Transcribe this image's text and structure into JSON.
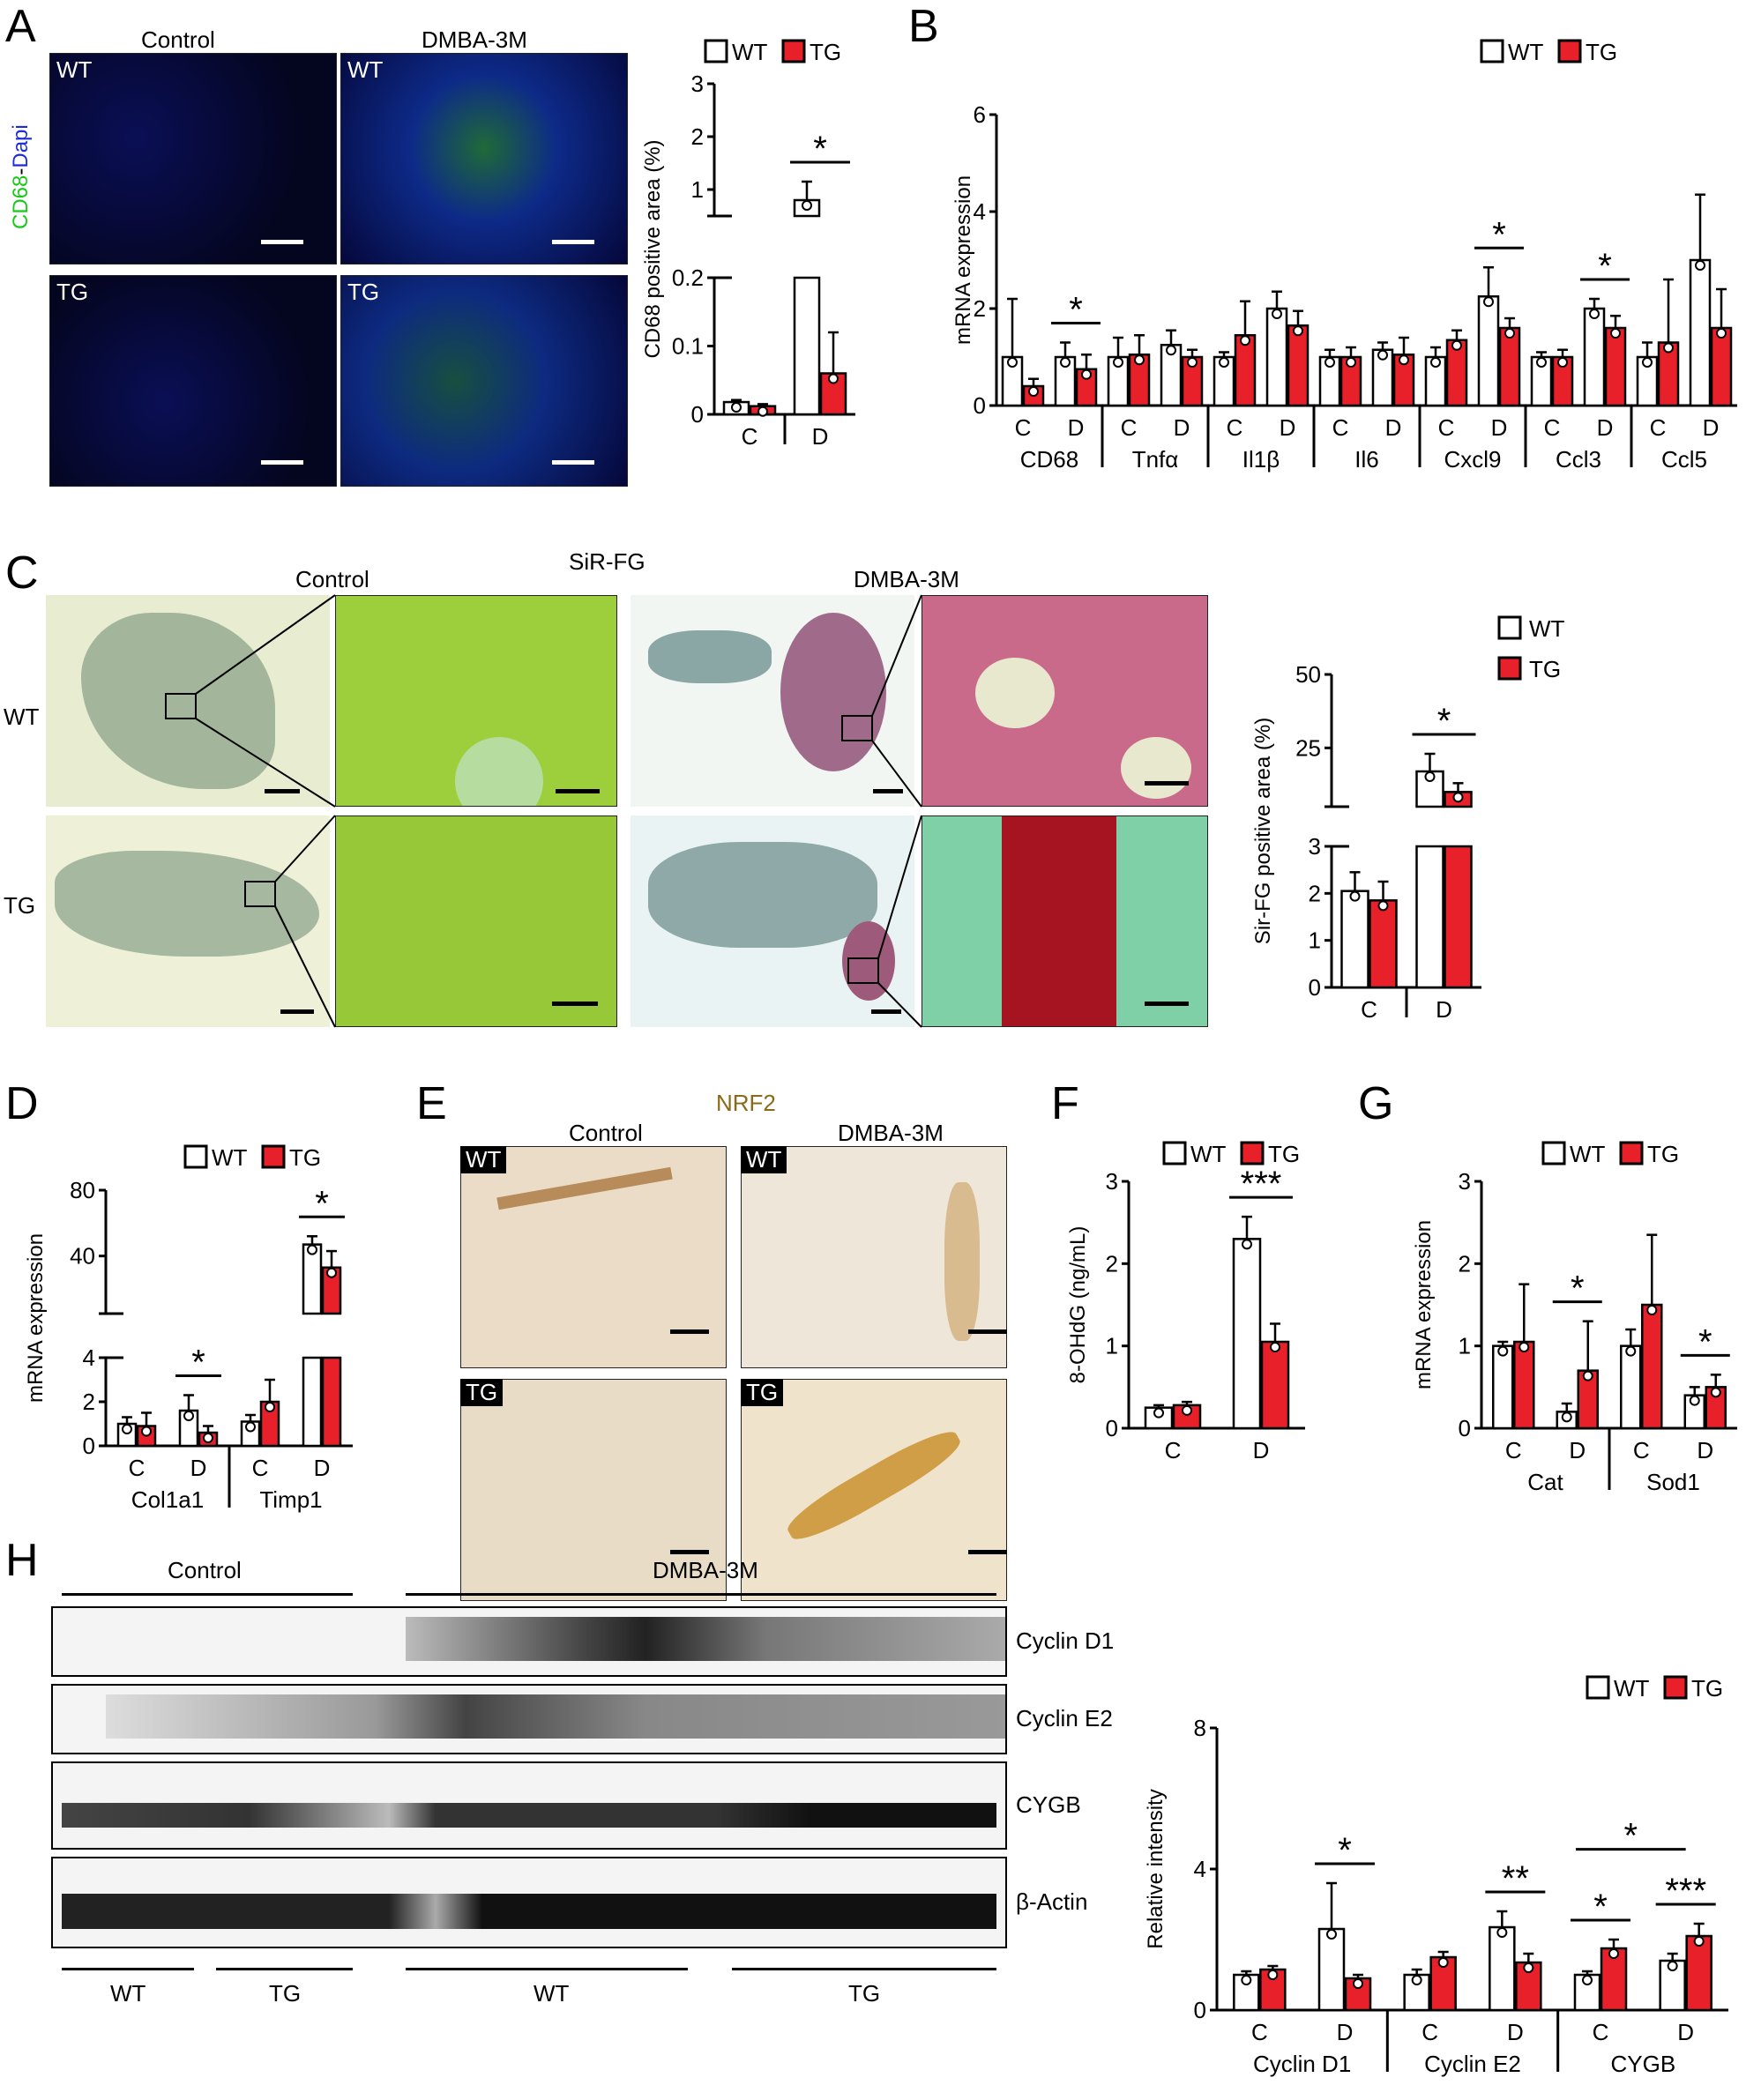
{
  "panels": {
    "A": {
      "letter": "A",
      "col_control": "Control",
      "col_dmba": "DMBA-3M",
      "row_wt": "WT",
      "row_tg": "TG",
      "stain_cd68": "CD68",
      "stain_sep": "-",
      "stain_dapi": "Dapi",
      "colors": {
        "cd68": "#17c917",
        "dapi": "#1b2bd8",
        "bg": "#03031a"
      }
    },
    "B": {
      "letter": "B"
    },
    "C": {
      "letter": "C",
      "title": "SiR-FG",
      "col_control": "Control",
      "col_dmba": "DMBA-3M",
      "row_wt": "WT",
      "row_tg": "TG"
    },
    "D": {
      "letter": "D"
    },
    "E": {
      "letter": "E",
      "title": "NRF2",
      "col_control": "Control",
      "col_dmba": "DMBA-3M",
      "row_wt": "WT",
      "row_tg": "TG",
      "title_color": "#8a6a1a"
    },
    "F": {
      "letter": "F"
    },
    "G": {
      "letter": "G"
    },
    "H": {
      "letter": "H",
      "group_control": "Control",
      "group_dmba": "DMBA-3M",
      "blot_labels": [
        "Cyclin D1",
        "Cyclin E2",
        "CYGB",
        "β-Actin"
      ],
      "bottom_labels": [
        "WT",
        "TG",
        "WT",
        "TG"
      ]
    }
  },
  "legend": {
    "wt": "WT",
    "tg": "TG",
    "wt_color": "#ffffff",
    "tg_color": "#e8202a"
  },
  "chart_data": [
    {
      "id": "A-chart",
      "type": "bar",
      "ylabel": "CD68 positive area (%)",
      "axis_break": true,
      "yticks_lower": [
        0.0,
        0.1,
        0.2
      ],
      "yticks_upper": [
        1,
        2,
        3
      ],
      "categories": [
        "C",
        "D"
      ],
      "series": [
        {
          "name": "WT",
          "values": [
            0.018,
            0.8
          ],
          "errors": [
            0.003,
            0.35
          ]
        },
        {
          "name": "TG",
          "values": [
            0.012,
            0.06
          ],
          "errors": [
            0.003,
            0.06
          ]
        }
      ],
      "significance": [
        {
          "category": "D",
          "label": "*"
        }
      ]
    },
    {
      "id": "B-chart",
      "type": "bar",
      "ylabel": "mRNA expression",
      "ylim": [
        0,
        6
      ],
      "yticks": [
        0,
        2,
        4,
        6
      ],
      "genes": [
        "CD68",
        "Tnfα",
        "Il1β",
        "Il6",
        "Cxcl9",
        "Ccl3",
        "Ccl5"
      ],
      "subcategories": [
        "C",
        "D"
      ],
      "series": [
        {
          "name": "WT",
          "values": [
            [
              1.0,
              1.0
            ],
            [
              1.0,
              1.25
            ],
            [
              1.0,
              2.0
            ],
            [
              1.0,
              1.15
            ],
            [
              1.0,
              2.25
            ],
            [
              1.0,
              2.0
            ],
            [
              1.0,
              3.0
            ]
          ],
          "errors": [
            [
              1.2,
              0.3
            ],
            [
              0.4,
              0.3
            ],
            [
              0.1,
              0.35
            ],
            [
              0.15,
              0.15
            ],
            [
              0.2,
              0.6
            ],
            [
              0.1,
              0.2
            ],
            [
              0.3,
              1.35
            ]
          ]
        },
        {
          "name": "TG",
          "values": [
            [
              0.4,
              0.75
            ],
            [
              1.05,
              1.0
            ],
            [
              1.45,
              1.65
            ],
            [
              1.0,
              1.05
            ],
            [
              1.35,
              1.6
            ],
            [
              1.0,
              1.6
            ],
            [
              1.3,
              1.6
            ]
          ],
          "errors": [
            [
              0.15,
              0.3
            ],
            [
              0.4,
              0.15
            ],
            [
              0.7,
              0.3
            ],
            [
              0.2,
              0.35
            ],
            [
              0.2,
              0.2
            ],
            [
              0.15,
              0.25
            ],
            [
              1.3,
              0.8
            ]
          ]
        }
      ],
      "significance": [
        {
          "gene": "CD68",
          "sub": "D",
          "label": "*"
        },
        {
          "gene": "Cxcl9",
          "sub": "D",
          "label": "*"
        },
        {
          "gene": "Ccl3",
          "sub": "D",
          "label": "*"
        }
      ]
    },
    {
      "id": "C-chart",
      "type": "bar",
      "ylabel": "Sir-FG positive area (%)",
      "axis_break": true,
      "yticks_lower": [
        0,
        1,
        2,
        3
      ],
      "yticks_upper": [
        25,
        50
      ],
      "categories": [
        "C",
        "D"
      ],
      "series": [
        {
          "name": "WT",
          "values": [
            2.05,
            17
          ],
          "errors": [
            0.4,
            6
          ]
        },
        {
          "name": "TG",
          "values": [
            1.85,
            10
          ],
          "errors": [
            0.4,
            3
          ]
        }
      ],
      "significance": [
        {
          "category": "D",
          "label": "*"
        }
      ]
    },
    {
      "id": "D-chart",
      "type": "bar",
      "ylabel": "mRNA expression",
      "axis_break": true,
      "yticks_lower": [
        0,
        2,
        4
      ],
      "yticks_upper": [
        40,
        80
      ],
      "genes": [
        "Col1a1",
        "Timp1"
      ],
      "subcategories": [
        "C",
        "D"
      ],
      "series": [
        {
          "name": "WT",
          "values": [
            [
              1.0,
              1.6
            ],
            [
              1.1,
              47
            ]
          ],
          "errors": [
            [
              0.3,
              0.7
            ],
            [
              0.3,
              5
            ]
          ]
        },
        {
          "name": "TG",
          "values": [
            [
              0.9,
              0.6
            ],
            [
              2.0,
              33
            ]
          ],
          "errors": [
            [
              0.6,
              0.3
            ],
            [
              1.0,
              10
            ]
          ]
        }
      ],
      "significance": [
        {
          "gene": "Col1a1",
          "sub": "D",
          "label": "*"
        },
        {
          "gene": "Timp1",
          "sub": "D",
          "label": "*"
        }
      ]
    },
    {
      "id": "F-chart",
      "type": "bar",
      "ylabel": "8-OHdG (ng/mL)",
      "ylim": [
        0,
        3
      ],
      "yticks": [
        0,
        1,
        2,
        3
      ],
      "categories": [
        "C",
        "D"
      ],
      "series": [
        {
          "name": "WT",
          "values": [
            0.25,
            2.3
          ],
          "errors": [
            0.03,
            0.27
          ]
        },
        {
          "name": "TG",
          "values": [
            0.28,
            1.05
          ],
          "errors": [
            0.04,
            0.22
          ]
        }
      ],
      "significance": [
        {
          "category": "D",
          "label": "***"
        }
      ]
    },
    {
      "id": "G-chart",
      "type": "bar",
      "ylabel": "mRNA expression",
      "ylim": [
        0,
        3
      ],
      "yticks": [
        0,
        1,
        2,
        3
      ],
      "genes": [
        "Cat",
        "Sod1"
      ],
      "subcategories": [
        "C",
        "D"
      ],
      "series": [
        {
          "name": "WT",
          "values": [
            [
              1.0,
              0.2
            ],
            [
              1.0,
              0.4
            ]
          ],
          "errors": [
            [
              0.05,
              0.1
            ],
            [
              0.2,
              0.1
            ]
          ]
        },
        {
          "name": "TG",
          "values": [
            [
              1.05,
              0.7
            ],
            [
              1.5,
              0.5
            ]
          ],
          "errors": [
            [
              0.7,
              0.6
            ],
            [
              0.85,
              0.15
            ]
          ]
        }
      ],
      "significance": [
        {
          "gene": "Cat",
          "sub": "D",
          "label": "*"
        },
        {
          "gene": "Sod1",
          "sub": "D",
          "label": "*"
        }
      ]
    },
    {
      "id": "H-chart",
      "type": "bar",
      "ylabel": "Relative intensity",
      "ylim": [
        0,
        8
      ],
      "yticks": [
        0,
        4,
        8
      ],
      "genes": [
        "Cyclin D1",
        "Cyclin E2",
        "CYGB"
      ],
      "subcategories": [
        "C",
        "D"
      ],
      "series": [
        {
          "name": "WT",
          "values": [
            [
              1.0,
              2.3
            ],
            [
              1.0,
              2.35
            ],
            [
              1.0,
              1.4
            ]
          ],
          "errors": [
            [
              0.1,
              1.3
            ],
            [
              0.15,
              0.45
            ],
            [
              0.1,
              0.2
            ]
          ]
        },
        {
          "name": "TG",
          "values": [
            [
              1.15,
              0.9
            ],
            [
              1.5,
              1.35
            ],
            [
              1.75,
              2.1
            ]
          ],
          "errors": [
            [
              0.1,
              0.1
            ],
            [
              0.15,
              0.25
            ],
            [
              0.25,
              0.35
            ]
          ]
        }
      ],
      "significance": [
        {
          "gene": "Cyclin D1",
          "sub": "D",
          "label": "*"
        },
        {
          "gene": "Cyclin E2",
          "sub": "D",
          "label": "**"
        },
        {
          "gene": "CYGB",
          "sub": "C",
          "label": "*"
        },
        {
          "gene": "CYGB",
          "sub": "D",
          "label": "***"
        },
        {
          "gene": "CYGB",
          "sub": "CD-WT",
          "label": "*"
        }
      ]
    }
  ]
}
